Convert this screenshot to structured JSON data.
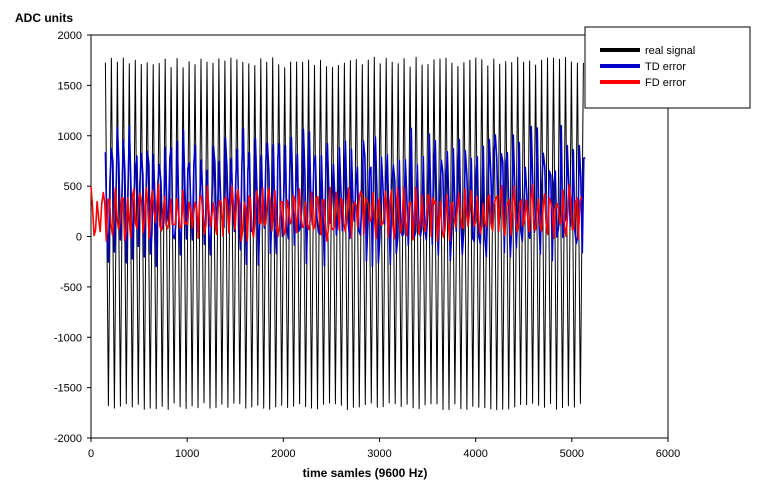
{
  "chart_data": {
    "type": "line",
    "title": "",
    "ylabel": "ADC units",
    "xlabel": "time samles (9600 Hz)",
    "xlim": [
      0,
      6000
    ],
    "ylim": [
      -2000,
      2000
    ],
    "x_ticks": [
      0,
      1000,
      2000,
      3000,
      4000,
      5000,
      6000
    ],
    "y_ticks": [
      2000,
      1500,
      1000,
      500,
      0,
      -500,
      -1000,
      -1500,
      -2000
    ],
    "grid": false,
    "legend_position": "top-right",
    "series": [
      {
        "name": "real signal",
        "color": "#000000",
        "x_range": [
          150,
          5120
        ],
        "approx_min": -1720,
        "approx_max": 1780,
        "approx_cycles": 80
      },
      {
        "name": "TD error",
        "color": "#0000cc",
        "x_range": [
          150,
          5140
        ],
        "approx_min": -300,
        "approx_max": 1100,
        "approx_cycles": 80
      },
      {
        "name": "FD error",
        "color": "#ff0000",
        "x_range": [
          0,
          5100
        ],
        "approx_min": -50,
        "approx_max": 520,
        "approx_cycles": 80
      }
    ]
  }
}
